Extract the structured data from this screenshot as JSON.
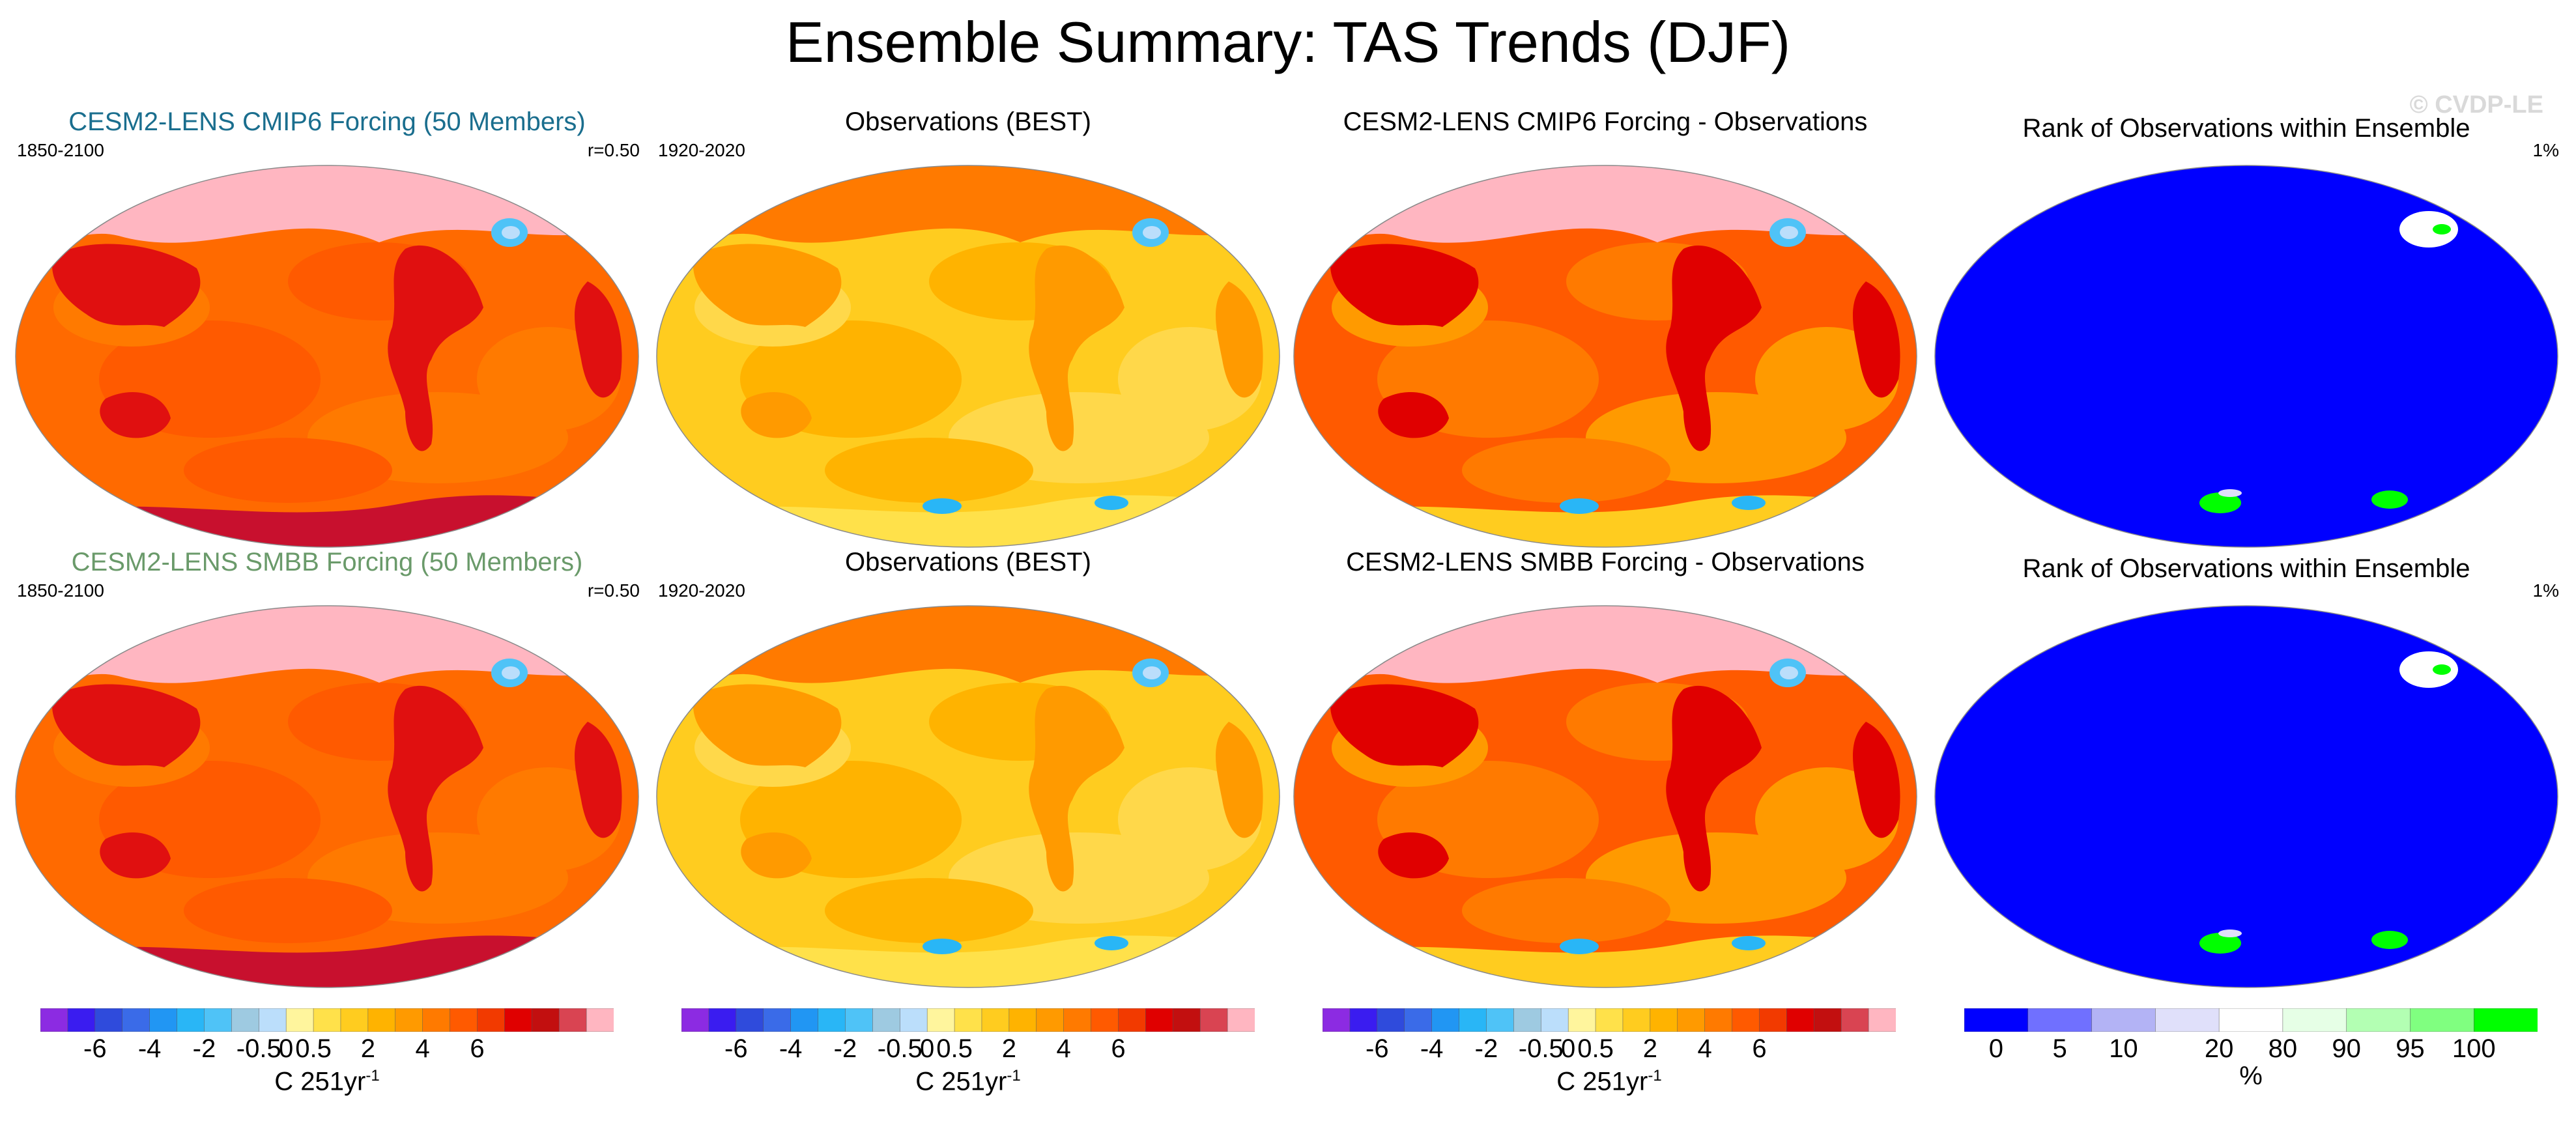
{
  "page": {
    "title": "Ensemble Summary: TAS Trends (DJF)",
    "watermark": "© CVDP-LE"
  },
  "colors": {
    "title_row1_model": "#1a6e8e",
    "title_row2_model": "#6a9a6a",
    "ocean_rank": "#0000ff",
    "polar": "#ffb6c1"
  },
  "chart_data": [
    {
      "type": "heatmap",
      "id": "r1c1",
      "title": "CESM2-LENS CMIP6 Forcing (50 Members)",
      "left_label": "1850-2100",
      "right_label": "r=0.50",
      "colorbar": "trend",
      "field": "model"
    },
    {
      "type": "heatmap",
      "id": "r1c2",
      "title": "Observations (BEST)",
      "left_label": "1920-2020",
      "right_label": "",
      "colorbar": "trend",
      "field": "obs"
    },
    {
      "type": "heatmap",
      "id": "r1c3",
      "title": "CESM2-LENS CMIP6 Forcing - Observations",
      "left_label": "",
      "right_label": "",
      "colorbar": "trend",
      "field": "diff"
    },
    {
      "type": "heatmap",
      "id": "r1c4",
      "title": "Rank of Observations within Ensemble",
      "left_label": "",
      "right_label": "1%",
      "colorbar": "rank",
      "field": "rank"
    },
    {
      "type": "heatmap",
      "id": "r2c1",
      "title": "CESM2-LENS SMBB Forcing (50 Members)",
      "left_label": "1850-2100",
      "right_label": "r=0.50",
      "colorbar": "trend",
      "field": "model"
    },
    {
      "type": "heatmap",
      "id": "r2c2",
      "title": "Observations (BEST)",
      "left_label": "1920-2020",
      "right_label": "",
      "colorbar": "trend",
      "field": "obs"
    },
    {
      "type": "heatmap",
      "id": "r2c3",
      "title": "CESM2-LENS SMBB Forcing - Observations",
      "left_label": "",
      "right_label": "",
      "colorbar": "trend",
      "field": "diff"
    },
    {
      "type": "heatmap",
      "id": "r2c4",
      "title": "Rank of Observations within Ensemble",
      "left_label": "",
      "right_label": "1%",
      "colorbar": "rank",
      "field": "rank"
    }
  ],
  "colorbars": {
    "trend": {
      "unit": "C 251yr",
      "unit_exp": "-1",
      "tick_labels": [
        "-6",
        "-4",
        "-2",
        "-0.5",
        "0",
        "0.5",
        "2",
        "4",
        "6"
      ],
      "colors": [
        "#8c2be2",
        "#3a1cf0",
        "#2f4bdc",
        "#3a6be8",
        "#2196f3",
        "#29b6f6",
        "#4fc3f7",
        "#9ecae1",
        "#bbdefb",
        "#fff59d",
        "#ffe14a",
        "#ffcc1f",
        "#ffb300",
        "#ff9a00",
        "#ff7a00",
        "#ff5a00",
        "#f23a00",
        "#e00000",
        "#c20f0f",
        "#d94452",
        "#ffb6c1"
      ]
    },
    "rank": {
      "unit": "%",
      "tick_labels": [
        "0",
        "5",
        "10",
        "20",
        "80",
        "90",
        "95",
        "100"
      ],
      "colors": [
        "#0000ff",
        "#7070ff",
        "#b3b3f5",
        "#e0e0fa",
        "#ffffff",
        "#e6ffe6",
        "#b3ffb3",
        "#80ff80",
        "#00ff00"
      ]
    }
  }
}
